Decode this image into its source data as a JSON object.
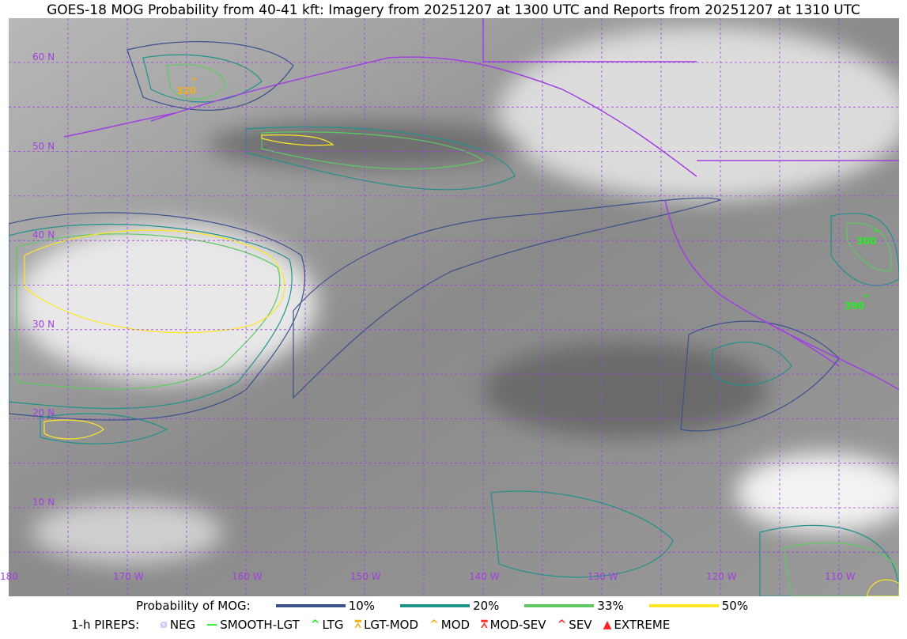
{
  "title": "GOES-18 MOG Probability from 40-41 kft: Imagery from 20251207 at 1300 UTC and Reports from 20251207 at 1310 UTC",
  "map": {
    "lat_labels": [
      "60 N",
      "50 N",
      "40 N",
      "30 N",
      "20 N",
      "10 N"
    ],
    "lon_labels": [
      "180",
      "170 W",
      "160 W",
      "150 W",
      "140 W",
      "130 W",
      "120 W",
      "110 W"
    ],
    "grid_color": "#a040e0",
    "coast_color": "#a040e0",
    "reports": [
      {
        "value": "320",
        "color": "#f0b020",
        "category": "MOD"
      },
      {
        "value": "300",
        "color": "#22ee22",
        "category": "LTG"
      },
      {
        "value": "390",
        "color": "#22ee22",
        "category": "LTG"
      }
    ]
  },
  "legend": {
    "prob_title": "Probability of MOG:",
    "prob_levels": [
      {
        "label": "10%",
        "color": "#3b528b"
      },
      {
        "label": "20%",
        "color": "#21918c"
      },
      {
        "label": "33%",
        "color": "#5ec962"
      },
      {
        "label": "50%",
        "color": "#fde725"
      }
    ],
    "pirep_title": "1-h PIREPS:",
    "pireps": [
      {
        "label": "NEG",
        "color": "#c8c8ff",
        "icon": "slashed-circle-icon",
        "glyph": "ø"
      },
      {
        "label": "SMOOTH-LGT",
        "color": "#22ee22",
        "icon": "dash-icon",
        "glyph": "—"
      },
      {
        "label": "LTG",
        "color": "#22ee22",
        "icon": "caret-icon",
        "glyph": "^"
      },
      {
        "label": "LGT-MOD",
        "color": "#f0b020",
        "icon": "caret-bar-icon",
        "glyph": "⩞"
      },
      {
        "label": "MOD",
        "color": "#f0b020",
        "icon": "caret-icon",
        "glyph": "^"
      },
      {
        "label": "MOD-SEV",
        "color": "#ff3030",
        "icon": "double-caret-bar-icon",
        "glyph": "⩞"
      },
      {
        "label": "SEV",
        "color": "#ff3030",
        "icon": "double-caret-icon",
        "glyph": "^"
      },
      {
        "label": "EXTREME",
        "color": "#ff2020",
        "icon": "filled-triangle-icon",
        "glyph": "▲"
      }
    ]
  }
}
